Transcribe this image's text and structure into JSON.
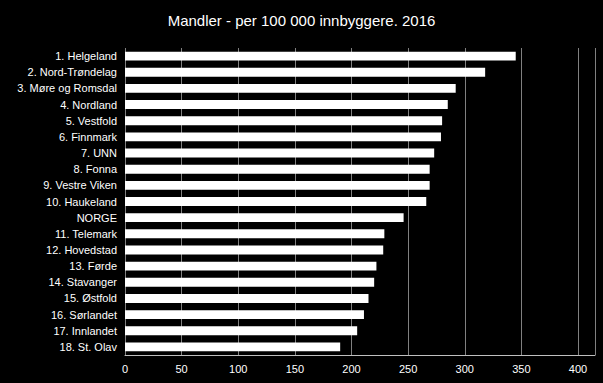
{
  "chart_data": {
    "type": "bar",
    "title": "Mandler - per 100 000 innbyggere. 2016",
    "orientation": "horizontal",
    "categories": [
      "1. Helgeland",
      "2. Nord-Trøndelag",
      "3. Møre og Romsdal",
      "4. Nordland",
      "5. Vestfold",
      "6. Finnmark",
      "7. UNN",
      "8. Fonna",
      "9. Vestre Viken",
      "10. Haukeland",
      "NORGE",
      "11. Telemark",
      "12. Hovedstad",
      "13. Førde",
      "14. Stavanger",
      "15. Østfold",
      "16. Sørlandet",
      "17. Innlandet",
      "18. St. Olav"
    ],
    "values": [
      345,
      318,
      292,
      285,
      280,
      279,
      273,
      269,
      269,
      266,
      246,
      229,
      228,
      222,
      220,
      215,
      211,
      205,
      190
    ],
    "color": "#ffffff",
    "xlim": [
      0,
      415
    ],
    "xticks": [
      0,
      50,
      100,
      150,
      200,
      250,
      300,
      350,
      400
    ],
    "grid": true
  }
}
